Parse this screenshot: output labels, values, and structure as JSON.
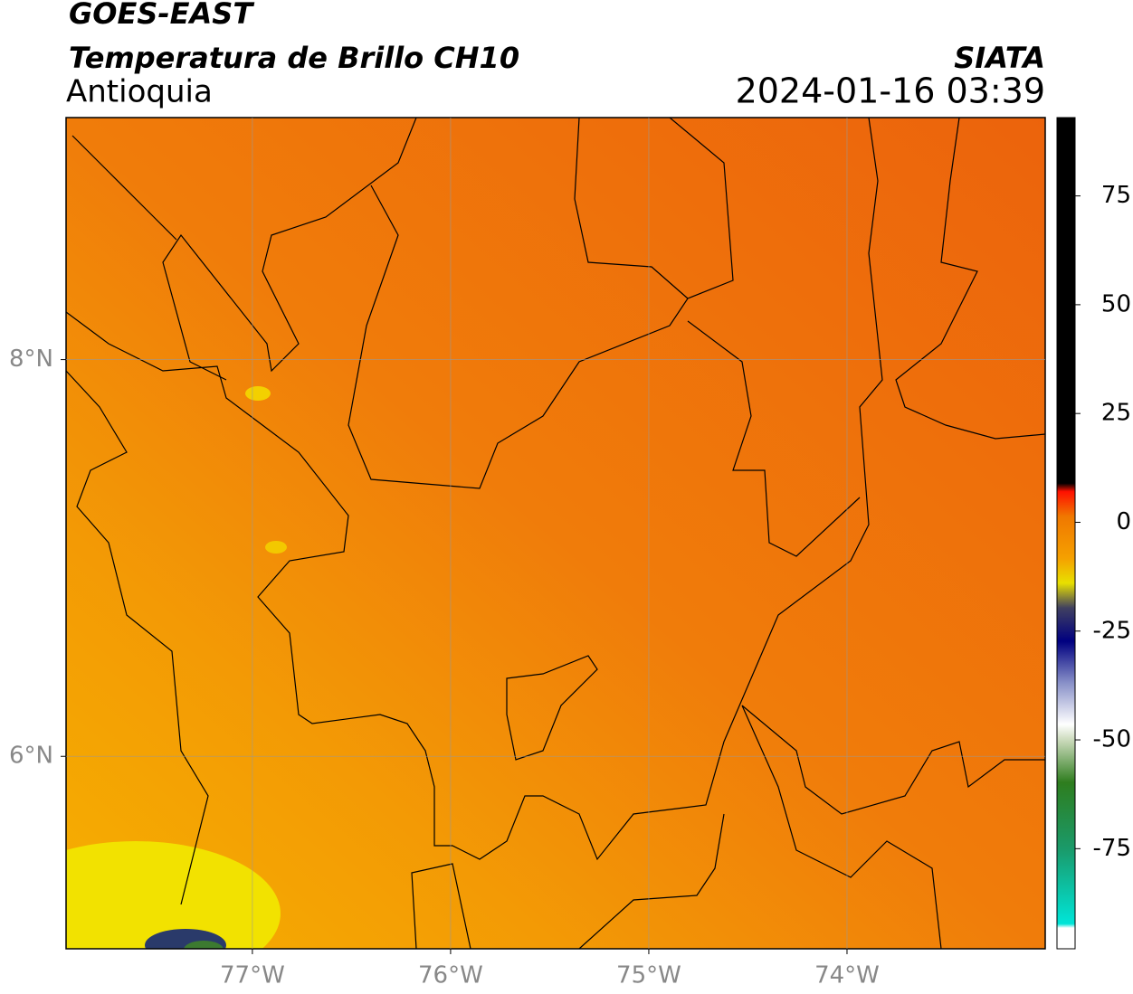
{
  "header": {
    "title": "GOES-EAST",
    "subtitle": "Temperatura de Brillo CH10",
    "region": "Antioquia",
    "source": "SIATA",
    "timestamp": "2024-01-16 03:39"
  },
  "map": {
    "xlim": [
      -77.94,
      -73.0
    ],
    "ylim": [
      5.03,
      9.22
    ],
    "xticks": [
      {
        "value": -77,
        "label": "77°W"
      },
      {
        "value": -76,
        "label": "76°W"
      },
      {
        "value": -75,
        "label": "75°W"
      },
      {
        "value": -74,
        "label": "74°W"
      }
    ],
    "yticks": [
      {
        "value": 8,
        "label": "8°N"
      },
      {
        "value": 6,
        "label": "6°N"
      }
    ],
    "grid": true
  },
  "colorbar": {
    "clim": [
      -98,
      93
    ],
    "ticks": [
      75,
      50,
      25,
      0,
      -25,
      -50,
      -75
    ]
  }
}
